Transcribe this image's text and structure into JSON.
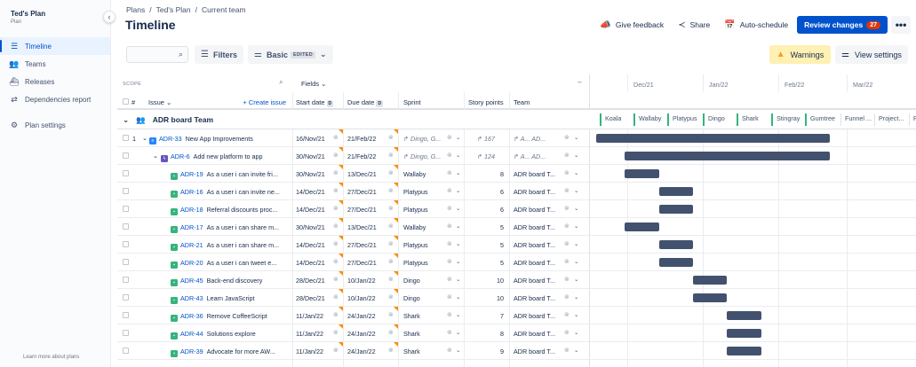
{
  "sidebar": {
    "title": "Ted's Plan",
    "subtitle": "Plan",
    "items": [
      {
        "label": "Timeline",
        "icon": "timeline-icon",
        "active": true
      },
      {
        "label": "Teams",
        "icon": "teams-icon",
        "active": false
      },
      {
        "label": "Releases",
        "icon": "releases-icon",
        "active": false
      },
      {
        "label": "Dependencies report",
        "icon": "dependencies-icon",
        "active": false
      }
    ],
    "settings_label": "Plan settings",
    "footer": "Learn more about plans"
  },
  "breadcrumbs": [
    "Plans",
    "/",
    "Ted's Plan",
    "/",
    "Current team"
  ],
  "page_title": "Timeline",
  "header": {
    "give_feedback": "Give feedback",
    "share": "Share",
    "auto_schedule": "Auto-schedule",
    "review_changes": "Review changes",
    "review_count": "27",
    "more": "•••"
  },
  "toolbar": {
    "search_placeholder": "",
    "filters": "Filters",
    "view_mode": "Basic",
    "edited_tag": "EDITED",
    "warnings": "Warnings",
    "view_settings": "View settings"
  },
  "table": {
    "scope_label": "SCOPE",
    "fields_label": "Fields",
    "hash_label": "#",
    "issue_label": "Issue",
    "create_issue": "+ Create issue",
    "columns": {
      "start": "Start date",
      "due": "Due date",
      "sprint": "Sprint",
      "points": "Story points",
      "team": "Team"
    },
    "sort_tag": "D",
    "group": "ADR board Team",
    "rows": [
      {
        "num": "1",
        "key": "ADR-33",
        "summary": "New App Improvements",
        "type": "init",
        "level": 0,
        "start": "16/Nov/21",
        "due": "21/Feb/22",
        "sprint": "↱ Dingo, G...",
        "sprint_rollup": true,
        "points": "↱ 167",
        "points_rollup": true,
        "team": "↱ A...   AD...",
        "team_rollup": true
      },
      {
        "num": "",
        "key": "ADR-6",
        "summary": "Add new platform to app",
        "type": "epic",
        "level": 1,
        "start": "30/Nov/21",
        "due": "21/Feb/22",
        "sprint": "↱ Dingo, G...",
        "sprint_rollup": true,
        "points": "↱ 124",
        "points_rollup": true,
        "team": "↱ A...   AD...",
        "team_rollup": true
      },
      {
        "num": "",
        "key": "ADR-19",
        "summary": "As a user i can invite fri...",
        "type": "story",
        "level": 2,
        "start": "30/Nov/21",
        "due": "13/Dec/21",
        "sprint": "Wallaby",
        "points": "8",
        "team": "ADR board T..."
      },
      {
        "num": "",
        "key": "ADR-16",
        "summary": "As a user i can invite ne...",
        "type": "story",
        "level": 2,
        "start": "14/Dec/21",
        "due": "27/Dec/21",
        "sprint": "Platypus",
        "points": "6",
        "team": "ADR board T..."
      },
      {
        "num": "",
        "key": "ADR-18",
        "summary": "Referral discounts proc...",
        "type": "story",
        "level": 2,
        "start": "14/Dec/21",
        "due": "27/Dec/21",
        "sprint": "Platypus",
        "points": "6",
        "team": "ADR board T..."
      },
      {
        "num": "",
        "key": "ADR-17",
        "summary": "As a user i can share m...",
        "type": "story",
        "level": 2,
        "start": "30/Nov/21",
        "due": "13/Dec/21",
        "sprint": "Wallaby",
        "points": "5",
        "team": "ADR board T..."
      },
      {
        "num": "",
        "key": "ADR-21",
        "summary": "As a user i can share m...",
        "type": "story",
        "level": 2,
        "start": "14/Dec/21",
        "due": "27/Dec/21",
        "sprint": "Platypus",
        "points": "5",
        "team": "ADR board T..."
      },
      {
        "num": "",
        "key": "ADR-20",
        "summary": "As a user i can tweet e...",
        "type": "story",
        "level": 2,
        "start": "14/Dec/21",
        "due": "27/Dec/21",
        "sprint": "Platypus",
        "points": "5",
        "team": "ADR board T..."
      },
      {
        "num": "",
        "key": "ADR-45",
        "summary": "Back-end discovery",
        "type": "story",
        "level": 2,
        "start": "28/Dec/21",
        "due": "10/Jan/22",
        "sprint": "Dingo",
        "points": "10",
        "team": "ADR board T..."
      },
      {
        "num": "",
        "key": "ADR-43",
        "summary": "Learn JavaScript",
        "type": "story",
        "level": 2,
        "start": "28/Dec/21",
        "due": "10/Jan/22",
        "sprint": "Dingo",
        "points": "10",
        "team": "ADR board T..."
      },
      {
        "num": "",
        "key": "ADR-36",
        "summary": "Remove CoffeeScript",
        "type": "story",
        "level": 2,
        "start": "11/Jan/22",
        "due": "24/Jan/22",
        "sprint": "Shark",
        "points": "7",
        "team": "ADR board T..."
      },
      {
        "num": "",
        "key": "ADR-44",
        "summary": "Solutions explore",
        "type": "story",
        "level": 2,
        "start": "11/Jan/22",
        "due": "24/Jan/22",
        "sprint": "Shark",
        "points": "8",
        "team": "ADR board T..."
      },
      {
        "num": "",
        "key": "ADR-39",
        "summary": "Advocate for more AW...",
        "type": "story",
        "level": 2,
        "start": "11/Jan/22",
        "due": "24/Jan/22",
        "sprint": "Shark",
        "points": "9",
        "team": "ADR board T..."
      }
    ]
  },
  "timeline": {
    "months": [
      "Dec/21",
      "Jan/22",
      "Feb/22",
      "Mar/22"
    ],
    "sprints": [
      {
        "name": "Koala",
        "status": "active"
      },
      {
        "name": "Wallaby",
        "status": "active"
      },
      {
        "name": "Platypus",
        "status": "active"
      },
      {
        "name": "Dingo",
        "status": "active"
      },
      {
        "name": "Shark",
        "status": "active"
      },
      {
        "name": "Stingray",
        "status": "active"
      },
      {
        "name": "Gumtree",
        "status": "active"
      },
      {
        "name": "Funnel ...",
        "status": "future"
      },
      {
        "name": "Project...",
        "status": "future"
      },
      {
        "name": "P",
        "status": "future"
      }
    ]
  }
}
